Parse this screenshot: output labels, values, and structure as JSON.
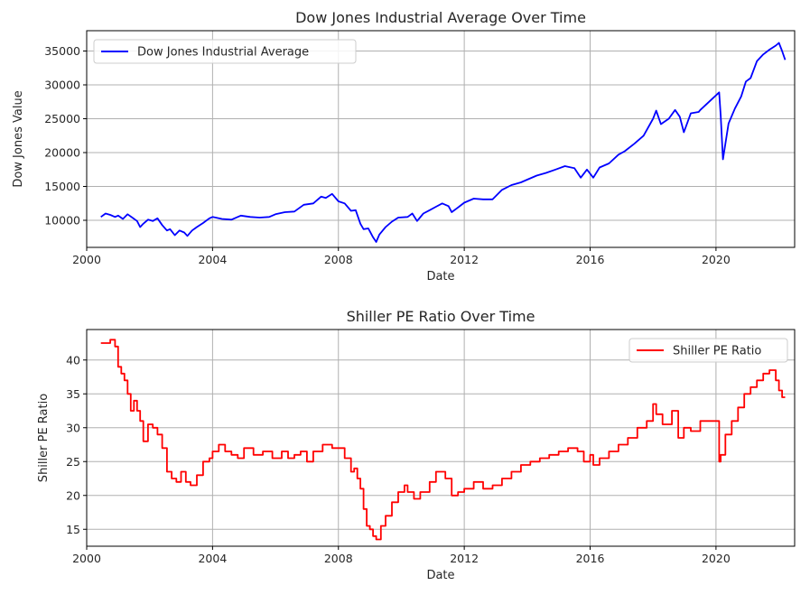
{
  "chart_data": [
    {
      "type": "line",
      "title": "Dow Jones Industrial Average Over Time",
      "xlabel": "Date",
      "ylabel": "Dow Jones Value",
      "xlim": [
        2000.0,
        2022.5
      ],
      "ylim": [
        6000,
        38000
      ],
      "grid": true,
      "legend_position": "upper-left",
      "x_ticks": [
        2000,
        2004,
        2008,
        2012,
        2016,
        2020
      ],
      "x_tick_labels": [
        "2000",
        "2004",
        "2008",
        "2012",
        "2016",
        "2020"
      ],
      "y_ticks": [
        10000,
        15000,
        20000,
        25000,
        30000,
        35000
      ],
      "y_tick_labels": [
        "10000",
        "15000",
        "20000",
        "25000",
        "30000",
        "35000"
      ],
      "series": [
        {
          "name": "Dow Jones Industrial Average",
          "color": "#0000ff",
          "x": [
            2000.45,
            2000.6,
            2000.75,
            2000.9,
            2001.0,
            2001.15,
            2001.3,
            2001.45,
            2001.6,
            2001.7,
            2001.8,
            2001.95,
            2002.1,
            2002.25,
            2002.4,
            2002.55,
            2002.65,
            2002.8,
            2002.95,
            2003.1,
            2003.2,
            2003.35,
            2003.5,
            2003.7,
            2003.9,
            2004.0,
            2004.3,
            2004.6,
            2004.9,
            2005.2,
            2005.5,
            2005.8,
            2006.0,
            2006.3,
            2006.6,
            2006.9,
            2007.2,
            2007.45,
            2007.6,
            2007.8,
            2008.0,
            2008.2,
            2008.4,
            2008.55,
            2008.7,
            2008.8,
            2008.95,
            2009.1,
            2009.2,
            2009.3,
            2009.5,
            2009.7,
            2009.9,
            2010.2,
            2010.35,
            2010.5,
            2010.7,
            2010.9,
            2011.1,
            2011.3,
            2011.5,
            2011.6,
            2011.8,
            2012.0,
            2012.3,
            2012.6,
            2012.9,
            2013.2,
            2013.5,
            2013.8,
            2014.0,
            2014.3,
            2014.6,
            2014.9,
            2015.2,
            2015.5,
            2015.7,
            2015.9,
            2016.1,
            2016.3,
            2016.6,
            2016.9,
            2017.1,
            2017.4,
            2017.7,
            2018.0,
            2018.1,
            2018.25,
            2018.5,
            2018.7,
            2018.85,
            2018.98,
            2019.2,
            2019.45,
            2019.5,
            2020.1,
            2020.15,
            2020.22,
            2020.4,
            2020.6,
            2020.8,
            2020.95,
            2021.1,
            2021.3,
            2021.5,
            2021.7,
            2021.9,
            2022.0,
            2022.1,
            2022.2
          ],
          "y": [
            10500,
            11000,
            10800,
            10500,
            10700,
            10200,
            10900,
            10400,
            9900,
            9000,
            9500,
            10100,
            9900,
            10300,
            9300,
            8500,
            8700,
            7800,
            8500,
            8200,
            7700,
            8500,
            9000,
            9600,
            10300,
            10500,
            10200,
            10100,
            10700,
            10500,
            10400,
            10500,
            10900,
            11200,
            11300,
            12300,
            12500,
            13500,
            13300,
            13900,
            12800,
            12500,
            11400,
            11500,
            9500,
            8700,
            8800,
            7500,
            6800,
            7900,
            9000,
            9800,
            10400,
            10500,
            11000,
            9900,
            11000,
            11500,
            12000,
            12500,
            12100,
            11200,
            11900,
            12600,
            13200,
            13100,
            13100,
            14500,
            15200,
            15600,
            16000,
            16600,
            17000,
            17500,
            18000,
            17700,
            16300,
            17500,
            16300,
            17800,
            18400,
            19700,
            20200,
            21300,
            22500,
            25000,
            26200,
            24200,
            25000,
            26300,
            25300,
            23000,
            25800,
            26000,
            26300,
            28900,
            25500,
            19000,
            24300,
            26500,
            28300,
            30500,
            31000,
            33500,
            34500,
            35200,
            35800,
            36200,
            35000,
            33700
          ]
        }
      ]
    },
    {
      "type": "line",
      "title": "Shiller PE Ratio Over Time",
      "xlabel": "Date",
      "ylabel": "Shiller PE Ratio",
      "xlim": [
        2000.0,
        2022.5
      ],
      "ylim": [
        12.5,
        44.5
      ],
      "grid": true,
      "legend_position": "upper-right",
      "x_ticks": [
        2000,
        2004,
        2008,
        2012,
        2016,
        2020
      ],
      "x_tick_labels": [
        "2000",
        "2004",
        "2008",
        "2012",
        "2016",
        "2020"
      ],
      "y_ticks": [
        15,
        20,
        25,
        30,
        35,
        40
      ],
      "y_tick_labels": [
        "15",
        "20",
        "25",
        "30",
        "35",
        "40"
      ],
      "series": [
        {
          "name": "Shiller PE Ratio",
          "color": "#ff0000",
          "step": true,
          "x": [
            2000.45,
            2000.75,
            2000.9,
            2001.0,
            2001.1,
            2001.2,
            2001.3,
            2001.4,
            2001.5,
            2001.6,
            2001.7,
            2001.8,
            2001.95,
            2002.1,
            2002.25,
            2002.4,
            2002.55,
            2002.7,
            2002.85,
            2003.0,
            2003.15,
            2003.3,
            2003.5,
            2003.7,
            2003.9,
            2004.0,
            2004.2,
            2004.4,
            2004.6,
            2004.8,
            2005.0,
            2005.3,
            2005.6,
            2005.9,
            2006.2,
            2006.4,
            2006.6,
            2006.8,
            2007.0,
            2007.2,
            2007.5,
            2007.8,
            2008.0,
            2008.2,
            2008.4,
            2008.5,
            2008.6,
            2008.7,
            2008.8,
            2008.9,
            2009.0,
            2009.1,
            2009.2,
            2009.35,
            2009.5,
            2009.7,
            2009.9,
            2010.1,
            2010.2,
            2010.4,
            2010.6,
            2010.9,
            2011.1,
            2011.4,
            2011.6,
            2011.8,
            2012.0,
            2012.3,
            2012.6,
            2012.9,
            2013.2,
            2013.5,
            2013.8,
            2014.1,
            2014.4,
            2014.7,
            2015.0,
            2015.3,
            2015.6,
            2015.8,
            2016.0,
            2016.1,
            2016.3,
            2016.6,
            2016.9,
            2017.2,
            2017.5,
            2017.8,
            2018.0,
            2018.1,
            2018.3,
            2018.6,
            2018.8,
            2018.98,
            2019.2,
            2019.5,
            2020.1,
            2020.15,
            2020.3,
            2020.5,
            2020.7,
            2020.9,
            2021.1,
            2021.3,
            2021.5,
            2021.7,
            2021.9,
            2022.0,
            2022.1,
            2022.2
          ],
          "y": [
            42.5,
            43,
            42,
            39,
            38,
            37,
            35,
            32.5,
            34,
            32.5,
            31,
            28,
            30.5,
            30,
            29,
            27,
            23.5,
            22.5,
            22,
            23.5,
            22,
            21.5,
            23,
            25,
            25.5,
            26.5,
            27.5,
            26.5,
            26,
            25.5,
            27,
            26,
            26.5,
            25.5,
            26.5,
            25.5,
            26,
            26.5,
            25,
            26.5,
            27.5,
            27,
            27,
            25.5,
            23.5,
            24,
            22.5,
            21,
            18,
            15.5,
            15,
            14,
            13.5,
            15.5,
            17,
            19,
            20.5,
            21.5,
            20.5,
            19.5,
            20.5,
            22,
            23.5,
            22.5,
            20,
            20.5,
            21,
            22,
            21,
            21.5,
            22.5,
            23.5,
            24.5,
            25,
            25.5,
            26,
            26.5,
            27,
            26.5,
            25,
            26,
            24.5,
            25.5,
            26.5,
            27.5,
            28.5,
            30,
            31,
            33.5,
            32,
            30.5,
            32.5,
            28.5,
            30,
            29.5,
            31,
            25,
            26,
            29,
            31,
            33,
            35,
            36,
            37,
            38,
            38.5,
            37,
            35.5,
            34.5,
            34.5
          ]
        }
      ]
    }
  ]
}
